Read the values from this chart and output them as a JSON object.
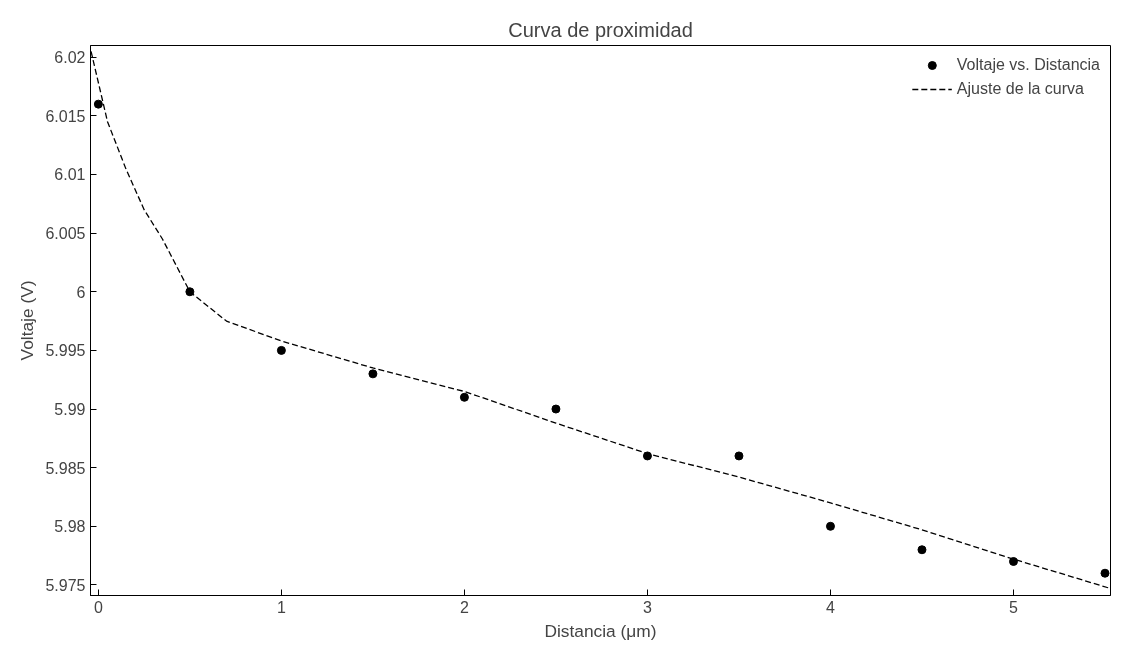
{
  "chart_data": {
    "type": "scatter",
    "title": "Curva de proximidad",
    "xlabel": "Distancia (μm)",
    "ylabel": "Voltaje (V)",
    "xlim": [
      -0.043,
      5.53
    ],
    "ylim": [
      5.9741,
      6.021
    ],
    "xticks": [
      0,
      1,
      2,
      3,
      4,
      5
    ],
    "yticks": [
      {
        "value": 5.975,
        "label": "5.975"
      },
      {
        "value": 5.98,
        "label": "5.98"
      },
      {
        "value": 5.985,
        "label": "5.985"
      },
      {
        "value": 5.99,
        "label": "5.99"
      },
      {
        "value": 5.995,
        "label": "5.995"
      },
      {
        "value": 6.0,
        "label": "6"
      },
      {
        "value": 6.005,
        "label": "6.005"
      },
      {
        "value": 6.01,
        "label": "6.01"
      },
      {
        "value": 6.015,
        "label": "6.015"
      },
      {
        "value": 6.02,
        "label": "6.02"
      }
    ],
    "grid": false,
    "legend": "top right",
    "series": [
      {
        "name": "Voltaje vs. Distancia",
        "type": "scatter",
        "marker": "circle",
        "color": "#000000",
        "x": [
          0,
          0.5,
          1,
          1.5,
          2,
          2.5,
          3,
          3.5,
          4,
          4.5,
          5,
          5.5
        ],
        "values": [
          6.016,
          6.0,
          5.995,
          5.993,
          5.991,
          5.99,
          5.986,
          5.986,
          5.98,
          5.978,
          5.977,
          5.976
        ]
      },
      {
        "name": "Ajuste de la curva",
        "type": "line",
        "line_style": "dashed",
        "color": "#000000",
        "x": [
          -0.04,
          0.05,
          0.1,
          0.15,
          0.25,
          0.35,
          0.5,
          0.7,
          1,
          1.5,
          2,
          2.5,
          3,
          3.5,
          4,
          4.5,
          5,
          5.53
        ],
        "values": [
          6.0205,
          6.0145,
          6.0125,
          6.0105,
          6.007,
          6.0045,
          6.0,
          5.9975,
          5.9958,
          5.9935,
          5.9915,
          5.9888,
          5.9862,
          5.9842,
          5.982,
          5.9797,
          5.9772,
          5.9747
        ]
      }
    ]
  }
}
